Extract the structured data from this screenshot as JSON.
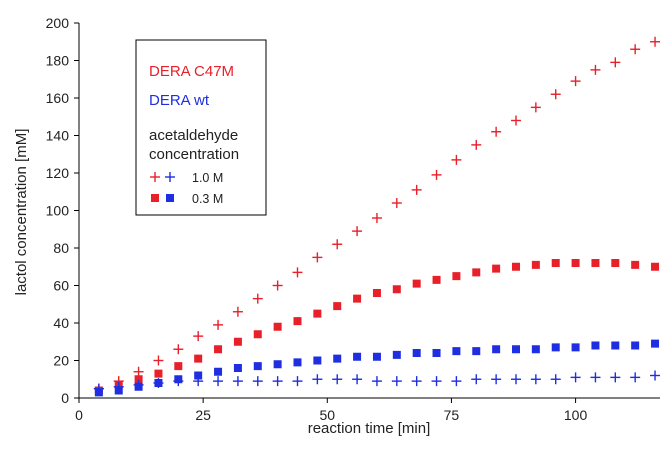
{
  "chart_data": {
    "type": "scatter",
    "title": "",
    "xlabel": "reaction time [min]",
    "ylabel": "lactol concentration [mM]",
    "xlim": [
      0,
      117
    ],
    "ylim": [
      0,
      200
    ],
    "xticks": [
      0,
      25,
      50,
      75,
      100
    ],
    "yticks": [
      0,
      20,
      40,
      60,
      80,
      100,
      120,
      140,
      160,
      180,
      200
    ],
    "grid": false,
    "legend": {
      "placement": "top-left",
      "enzymes": [
        {
          "label": "DERA C47M",
          "color": "#e8202a"
        },
        {
          "label": "DERA wt",
          "color": "#1e2ee0"
        }
      ],
      "concentration_title_line1": "acetaldehyde",
      "concentration_title_line2": "concentration",
      "concentrations": [
        {
          "label": "1.0 M",
          "marker": "plus"
        },
        {
          "label": "0.3 M",
          "marker": "square"
        }
      ]
    },
    "x": [
      4,
      8,
      12,
      16,
      20,
      24,
      28,
      32,
      36,
      40,
      44,
      48,
      52,
      56,
      60,
      64,
      68,
      72,
      76,
      80,
      84,
      88,
      92,
      96,
      100,
      104,
      108,
      112,
      116
    ],
    "series": [
      {
        "name": "DERA C47M 1.0 M",
        "color": "#e8202a",
        "marker": "plus",
        "values": [
          5,
          9,
          14,
          20,
          26,
          33,
          39,
          46,
          53,
          60,
          67,
          75,
          82,
          89,
          96,
          104,
          111,
          119,
          127,
          135,
          142,
          148,
          155,
          162,
          169,
          175,
          179,
          186,
          190
        ]
      },
      {
        "name": "DERA C47M 0.3 M",
        "color": "#e8202a",
        "marker": "square",
        "values": [
          4,
          7,
          10,
          13,
          17,
          21,
          26,
          30,
          34,
          38,
          41,
          45,
          49,
          53,
          56,
          58,
          61,
          63,
          65,
          67,
          69,
          70,
          71,
          72,
          72,
          72,
          72,
          71,
          70
        ]
      },
      {
        "name": "DERA wt 1.0 M",
        "color": "#1e2ee0",
        "marker": "plus",
        "values": [
          5,
          6,
          7,
          8,
          9,
          9,
          9,
          9,
          9,
          9,
          9,
          10,
          10,
          10,
          9,
          9,
          9,
          9,
          9,
          10,
          10,
          10,
          10,
          10,
          11,
          11,
          11,
          11,
          12
        ]
      },
      {
        "name": "DERA wt 0.3 M",
        "color": "#1e2ee0",
        "marker": "square",
        "values": [
          3,
          4,
          6,
          8,
          10,
          12,
          14,
          16,
          17,
          18,
          19,
          20,
          21,
          22,
          22,
          23,
          24,
          24,
          25,
          25,
          26,
          26,
          26,
          27,
          27,
          28,
          28,
          28,
          29
        ]
      }
    ]
  }
}
